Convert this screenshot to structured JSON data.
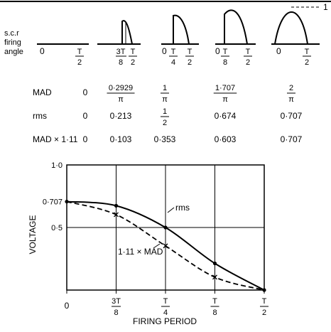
{
  "top_labels": {
    "line1": "s.c.r",
    "line2": "firing",
    "line3": "angle"
  },
  "peak_label": "1",
  "waveforms": [
    {
      "axis_start": "0",
      "axis_end_num": "T",
      "axis_end_den": "2",
      "angle_num": "",
      "angle_den": ""
    },
    {
      "axis_start": "",
      "axis_end_num": "T",
      "axis_end_den": "2",
      "angle_num": "3T",
      "angle_den": "8"
    },
    {
      "axis_start": "0",
      "axis_end_num": "T",
      "axis_end_den": "2",
      "angle_num": "T",
      "angle_den": "4"
    },
    {
      "axis_start": "0",
      "axis_end_num": "T",
      "axis_end_den": "2",
      "angle_num": "T",
      "angle_den": "8"
    },
    {
      "axis_start": "0",
      "axis_end_num": "T",
      "axis_end_den": "2",
      "angle_num": "",
      "angle_den": ""
    }
  ],
  "table": {
    "rows": [
      {
        "label": "MAD",
        "cells": [
          {
            "plain": "0"
          },
          {
            "num": "0·2929",
            "den": "π"
          },
          {
            "num": "1",
            "den": "π"
          },
          {
            "num": "1·707",
            "den": "π"
          },
          {
            "num": "2",
            "den": "π"
          }
        ]
      },
      {
        "label": "rms",
        "cells": [
          {
            "plain": "0"
          },
          {
            "plain": "0·213"
          },
          {
            "num": "1",
            "den": "2"
          },
          {
            "plain": "0·674"
          },
          {
            "plain": "0·707"
          }
        ]
      },
      {
        "label": "MAD × 1·11",
        "cells": [
          {
            "plain": "0"
          },
          {
            "plain": "0·103"
          },
          {
            "plain": "0·353"
          },
          {
            "plain": "0·603"
          },
          {
            "plain": "0·707"
          }
        ]
      }
    ]
  },
  "chart": {
    "ylabel": "VOLTAGE",
    "xlabel": "FIRING PERIOD",
    "yticks": [
      "1·0",
      "0·707",
      "0·5"
    ],
    "xticks": [
      {
        "plain": "0"
      },
      {
        "num": "3T",
        "den": "8"
      },
      {
        "num": "T",
        "den": "4"
      },
      {
        "num": "T",
        "den": "8"
      },
      {
        "num": "T",
        "den": "2"
      }
    ],
    "rms_label": "rms",
    "mad_label": "1·11 × MAD"
  },
  "chart_data": {
    "type": "line",
    "x": [
      0,
      1,
      2,
      3,
      4
    ],
    "ylim": [
      0,
      1.0
    ],
    "grid": true,
    "series": [
      {
        "name": "rms",
        "values": [
          0.707,
          0.674,
          0.5,
          0.213,
          0
        ]
      },
      {
        "name": "1·11 × MAD",
        "values": [
          0.707,
          0.603,
          0.353,
          0.103,
          0
        ]
      }
    ]
  }
}
